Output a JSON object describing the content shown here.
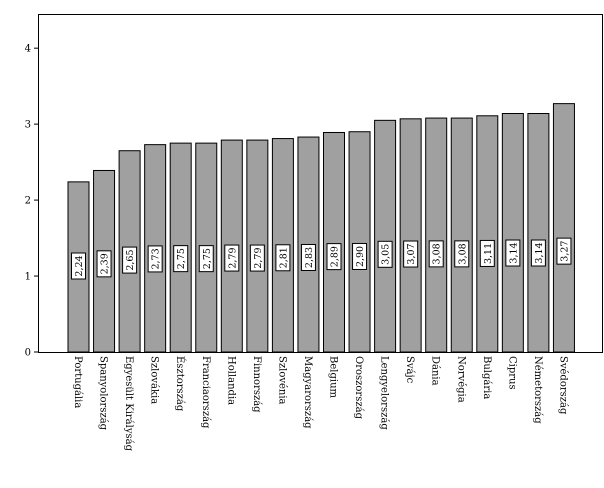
{
  "chart_data": {
    "type": "bar",
    "categories": [
      "Portugália",
      "Spanyolország",
      "Egyesült Királyság",
      "Szlovákia",
      "Észtország",
      "Franciaország",
      "Hollandia",
      "Finnország",
      "Szlovénia",
      "Magyarország",
      "Belgium",
      "Oroszország",
      "Lengyelország",
      "Svájc",
      "Dánia",
      "Norvégia",
      "Bulgária",
      "Ciprus",
      "Németország",
      "Svédország"
    ],
    "values": [
      2.24,
      2.39,
      2.65,
      2.73,
      2.75,
      2.75,
      2.79,
      2.79,
      2.81,
      2.83,
      2.89,
      2.9,
      3.05,
      3.07,
      3.08,
      3.08,
      3.11,
      3.14,
      3.14,
      3.27
    ],
    "data_labels": [
      "2,24",
      "2,39",
      "2,65",
      "2,73",
      "2,75",
      "2,75",
      "2,79",
      "2,79",
      "2,81",
      "2,83",
      "2,89",
      "2,90",
      "3,05",
      "3,07",
      "3,08",
      "3,08",
      "3,11",
      "3,14",
      "3,14",
      "3,27"
    ],
    "yticks": [
      0,
      1,
      2,
      3,
      4
    ],
    "ylim": [
      0,
      4.45
    ],
    "bar_color": "#a0a0a0",
    "grid": false,
    "title": "",
    "xlabel": "",
    "ylabel": ""
  }
}
